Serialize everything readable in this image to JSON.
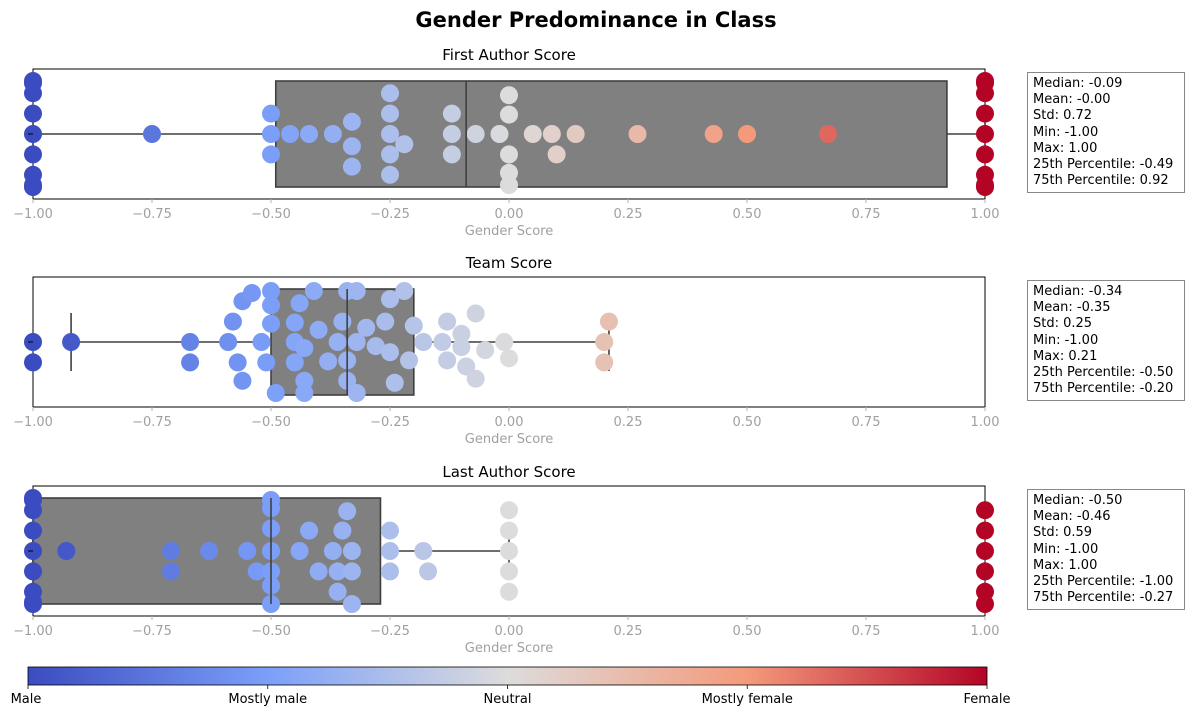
{
  "title": "Gender Predominance in Class",
  "chart_data": {
    "type": "box-swarm",
    "xlim": [
      -1.0,
      1.0
    ],
    "xticks": [
      "−1.00",
      "−0.75",
      "−0.50",
      "−0.25",
      "0.00",
      "0.25",
      "0.50",
      "0.75",
      "1.00"
    ],
    "grid": false,
    "colorbar": {
      "colormap": "coolwarm",
      "labels": [
        "Male",
        "Mostly male",
        "Neutral",
        "Mostly female",
        "Female"
      ],
      "colors": [
        "#3b4cc0",
        "#7b9ff9",
        "#dddcdc",
        "#f49a7b",
        "#b40426"
      ]
    },
    "panels": [
      {
        "title": "First Author Score",
        "xlabel": "Gender Score",
        "box": {
          "whisker_low": -1.0,
          "q1": -0.49,
          "median": -0.09,
          "q3": 0.92,
          "whisker_high": 1.0
        },
        "stats": {
          "median": -0.09,
          "mean": -0.0,
          "std": 0.72,
          "min": -1.0,
          "max": 1.0,
          "p25": -0.49,
          "p75": 0.92
        },
        "points": [
          {
            "v": -1.0,
            "o": -2.6
          },
          {
            "v": -1.0,
            "o": -2.5
          },
          {
            "v": -1.0,
            "o": -2.0
          },
          {
            "v": -1.0,
            "o": -1.0
          },
          {
            "v": -1.0,
            "o": 0
          },
          {
            "v": -1.0,
            "o": 1.0
          },
          {
            "v": -1.0,
            "o": 2.0
          },
          {
            "v": -1.0,
            "o": 2.5
          },
          {
            "v": -1.0,
            "o": 2.6
          },
          {
            "v": -0.75,
            "o": 0
          },
          {
            "v": -0.5,
            "o": -1.0
          },
          {
            "v": -0.5,
            "o": 0
          },
          {
            "v": -0.5,
            "o": 1.0
          },
          {
            "v": -0.46,
            "o": 0
          },
          {
            "v": -0.42,
            "o": 0
          },
          {
            "v": -0.37,
            "o": 0
          },
          {
            "v": -0.33,
            "o": -0.6
          },
          {
            "v": -0.33,
            "o": 0.6
          },
          {
            "v": -0.33,
            "o": 1.6
          },
          {
            "v": -0.25,
            "o": -2.0
          },
          {
            "v": -0.25,
            "o": -1.0
          },
          {
            "v": -0.25,
            "o": 0
          },
          {
            "v": -0.25,
            "o": 1.0
          },
          {
            "v": -0.25,
            "o": 2.0
          },
          {
            "v": -0.22,
            "o": 0.5
          },
          {
            "v": -0.12,
            "o": -1.0
          },
          {
            "v": -0.12,
            "o": 0
          },
          {
            "v": -0.12,
            "o": 1.0
          },
          {
            "v": -0.07,
            "o": 0
          },
          {
            "v": -0.02,
            "o": 0
          },
          {
            "v": 0.0,
            "o": -1.9
          },
          {
            "v": 0.0,
            "o": -0.95
          },
          {
            "v": 0.0,
            "o": 1.0
          },
          {
            "v": 0.0,
            "o": 1.9
          },
          {
            "v": 0.0,
            "o": 2.5
          },
          {
            "v": 0.05,
            "o": 0
          },
          {
            "v": 0.09,
            "o": 0
          },
          {
            "v": 0.1,
            "o": 1.0
          },
          {
            "v": 0.14,
            "o": 0
          },
          {
            "v": 0.27,
            "o": 0
          },
          {
            "v": 0.43,
            "o": 0
          },
          {
            "v": 0.5,
            "o": 0
          },
          {
            "v": 0.67,
            "o": 0
          },
          {
            "v": 1.0,
            "o": -2.6
          },
          {
            "v": 1.0,
            "o": -2.5
          },
          {
            "v": 1.0,
            "o": -2.0
          },
          {
            "v": 1.0,
            "o": -1.0
          },
          {
            "v": 1.0,
            "o": 0
          },
          {
            "v": 1.0,
            "o": 1.0
          },
          {
            "v": 1.0,
            "o": 2.0
          },
          {
            "v": 1.0,
            "o": 2.5
          },
          {
            "v": 1.0,
            "o": 2.6
          }
        ]
      },
      {
        "title": "Team Score",
        "xlabel": "Gender Score",
        "box": {
          "whisker_low": -0.92,
          "q1": -0.5,
          "median": -0.34,
          "q3": -0.2,
          "whisker_high": 0.21
        },
        "stats": {
          "median": -0.34,
          "mean": -0.35,
          "std": 0.25,
          "min": -1.0,
          "max": 0.21,
          "p25": -0.5,
          "p75": -0.2
        },
        "points": [
          {
            "v": -1.0,
            "o": 0
          },
          {
            "v": -1.0,
            "o": 1.0
          },
          {
            "v": -0.92,
            "o": 0
          },
          {
            "v": -0.67,
            "o": 0
          },
          {
            "v": -0.67,
            "o": 1.0
          },
          {
            "v": -0.59,
            "o": 0
          },
          {
            "v": -0.58,
            "o": -1.0
          },
          {
            "v": -0.57,
            "o": 1.0
          },
          {
            "v": -0.56,
            "o": -2.0
          },
          {
            "v": -0.56,
            "o": 1.9
          },
          {
            "v": -0.54,
            "o": -2.4
          },
          {
            "v": -0.52,
            "o": 0
          },
          {
            "v": -0.51,
            "o": 1.0
          },
          {
            "v": -0.5,
            "o": -2.5
          },
          {
            "v": -0.5,
            "o": -1.8
          },
          {
            "v": -0.5,
            "o": -0.9
          },
          {
            "v": -0.49,
            "o": 2.5
          },
          {
            "v": -0.45,
            "o": -0.95
          },
          {
            "v": -0.45,
            "o": 0
          },
          {
            "v": -0.45,
            "o": 1.0
          },
          {
            "v": -0.44,
            "o": -1.9
          },
          {
            "v": -0.43,
            "o": 0.3
          },
          {
            "v": -0.43,
            "o": 2.5
          },
          {
            "v": -0.43,
            "o": 1.9
          },
          {
            "v": -0.41,
            "o": -2.5
          },
          {
            "v": -0.4,
            "o": -0.6
          },
          {
            "v": -0.38,
            "o": 0.95
          },
          {
            "v": -0.36,
            "o": 0
          },
          {
            "v": -0.35,
            "o": -1.0
          },
          {
            "v": -0.34,
            "o": 0.9
          },
          {
            "v": -0.34,
            "o": 1.9
          },
          {
            "v": -0.34,
            "o": -2.5
          },
          {
            "v": -0.32,
            "o": 0
          },
          {
            "v": -0.32,
            "o": -2.5
          },
          {
            "v": -0.32,
            "o": 2.5
          },
          {
            "v": -0.3,
            "o": -0.7
          },
          {
            "v": -0.28,
            "o": 0.2
          },
          {
            "v": -0.26,
            "o": -1.0
          },
          {
            "v": -0.25,
            "o": 0.5
          },
          {
            "v": -0.25,
            "o": -2.1
          },
          {
            "v": -0.24,
            "o": 2.0
          },
          {
            "v": -0.22,
            "o": -2.5
          },
          {
            "v": -0.21,
            "o": 0.9
          },
          {
            "v": -0.2,
            "o": -0.8
          },
          {
            "v": -0.18,
            "o": 0
          },
          {
            "v": -0.14,
            "o": 0
          },
          {
            "v": -0.13,
            "o": 0.9
          },
          {
            "v": -0.13,
            "o": -1.0
          },
          {
            "v": -0.1,
            "o": 0.25
          },
          {
            "v": -0.1,
            "o": -0.4
          },
          {
            "v": -0.09,
            "o": 1.2
          },
          {
            "v": -0.07,
            "o": -1.4
          },
          {
            "v": -0.07,
            "o": 1.8
          },
          {
            "v": -0.05,
            "o": 0.4
          },
          {
            "v": -0.01,
            "o": 0
          },
          {
            "v": 0.0,
            "o": 0.8
          },
          {
            "v": 0.2,
            "o": 0
          },
          {
            "v": 0.2,
            "o": 1.0
          },
          {
            "v": 0.21,
            "o": -1.0
          }
        ]
      },
      {
        "title": "Last Author Score",
        "xlabel": "Gender Score",
        "box": {
          "whisker_low": -1.0,
          "q1": -1.0,
          "median": -0.5,
          "q3": -0.27,
          "whisker_high": 0.0
        },
        "stats": {
          "median": -0.5,
          "mean": -0.46,
          "std": 0.59,
          "min": -1.0,
          "max": 1.0,
          "p25": -1.0,
          "p75": -0.27
        },
        "points": [
          {
            "v": -1.0,
            "o": -2.6
          },
          {
            "v": -1.0,
            "o": -2.5
          },
          {
            "v": -1.0,
            "o": -2.0
          },
          {
            "v": -1.0,
            "o": -1.0
          },
          {
            "v": -1.0,
            "o": 0
          },
          {
            "v": -1.0,
            "o": 1.0
          },
          {
            "v": -1.0,
            "o": 2.0
          },
          {
            "v": -1.0,
            "o": 2.5
          },
          {
            "v": -1.0,
            "o": 2.6
          },
          {
            "v": -0.93,
            "o": 0
          },
          {
            "v": -0.71,
            "o": 0
          },
          {
            "v": -0.71,
            "o": 1.0
          },
          {
            "v": -0.63,
            "o": 0
          },
          {
            "v": -0.55,
            "o": 0
          },
          {
            "v": -0.53,
            "o": 1.0
          },
          {
            "v": -0.5,
            "o": -2.5
          },
          {
            "v": -0.5,
            "o": -2.1
          },
          {
            "v": -0.5,
            "o": -1.1
          },
          {
            "v": -0.5,
            "o": 0
          },
          {
            "v": -0.5,
            "o": 1.0
          },
          {
            "v": -0.5,
            "o": 1.7
          },
          {
            "v": -0.5,
            "o": 2.6
          },
          {
            "v": -0.44,
            "o": 0
          },
          {
            "v": -0.42,
            "o": -1.0
          },
          {
            "v": -0.4,
            "o": 1.0
          },
          {
            "v": -0.37,
            "o": 0
          },
          {
            "v": -0.36,
            "o": 1.0
          },
          {
            "v": -0.36,
            "o": 2.0
          },
          {
            "v": -0.35,
            "o": -1.0
          },
          {
            "v": -0.34,
            "o": -1.95
          },
          {
            "v": -0.33,
            "o": 0
          },
          {
            "v": -0.33,
            "o": 1.0
          },
          {
            "v": -0.33,
            "o": 2.6
          },
          {
            "v": -0.25,
            "o": 0
          },
          {
            "v": -0.25,
            "o": -1.0
          },
          {
            "v": -0.25,
            "o": 1.0
          },
          {
            "v": -0.18,
            "o": 0
          },
          {
            "v": -0.17,
            "o": 1.0
          },
          {
            "v": 0.0,
            "o": -2.0
          },
          {
            "v": 0.0,
            "o": -1.0
          },
          {
            "v": 0.0,
            "o": 0
          },
          {
            "v": 0.0,
            "o": 1.0
          },
          {
            "v": 0.0,
            "o": 2.0
          },
          {
            "v": 1.0,
            "o": -2.0
          },
          {
            "v": 1.0,
            "o": -1.0
          },
          {
            "v": 1.0,
            "o": 0
          },
          {
            "v": 1.0,
            "o": 1.0
          },
          {
            "v": 1.0,
            "o": 2.0
          },
          {
            "v": 1.0,
            "o": 2.6
          }
        ]
      }
    ]
  },
  "stats_labels": {
    "median": "Median:",
    "mean": "Mean:",
    "std": "Std:",
    "min": "Min:",
    "max": "Max:",
    "p25": "25th Percentile:",
    "p75": "75th Percentile:"
  },
  "stats_text": [
    [
      "Median: -0.09",
      "Mean: -0.00",
      "Std: 0.72",
      "Min: -1.00",
      "Max: 1.00",
      "25th Percentile: -0.49",
      "75th Percentile: 0.92"
    ],
    [
      "Median: -0.34",
      "Mean: -0.35",
      "Std: 0.25",
      "Min: -1.00",
      "Max: 0.21",
      "25th Percentile: -0.50",
      "75th Percentile: -0.20"
    ],
    [
      "Median: -0.50",
      "Mean: -0.46",
      "Std: 0.59",
      "Min: -1.00",
      "Max: 1.00",
      "25th Percentile: -1.00",
      "75th Percentile: -0.27"
    ]
  ]
}
